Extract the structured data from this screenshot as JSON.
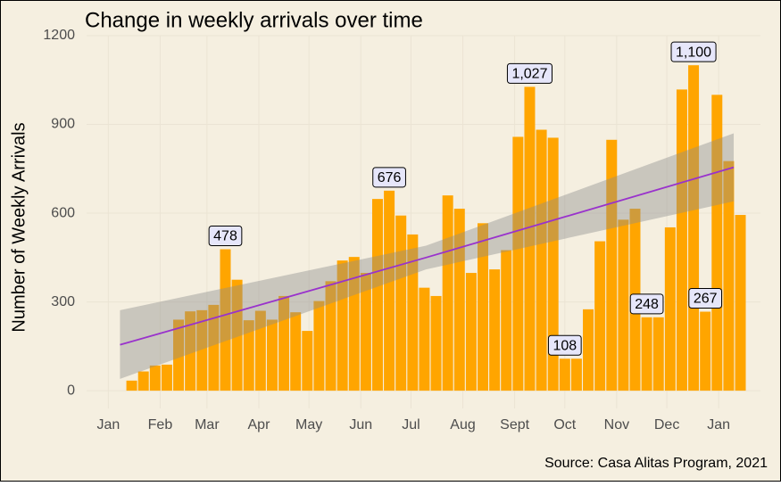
{
  "chart_data": {
    "type": "bar",
    "title": "Change in weekly arrivals over time",
    "y_label": "Number of Weekly Arrivals",
    "source": "Source: Casa Alitas Program, 2021",
    "color": "#ffa500",
    "x": [
      14,
      21,
      28,
      35,
      42,
      49,
      56,
      63,
      70,
      77,
      84,
      91,
      98,
      105,
      112,
      119,
      126,
      133,
      140,
      147,
      154,
      161,
      168,
      175,
      182,
      189,
      196,
      203,
      210,
      217,
      224,
      231,
      238,
      245,
      252,
      259,
      266,
      273,
      280,
      287,
      294,
      301,
      308,
      315,
      322,
      329,
      336,
      343,
      350,
      357,
      364,
      371,
      378
    ],
    "values": [
      34,
      65,
      85,
      88,
      240,
      268,
      272,
      290,
      478,
      375,
      238,
      270,
      240,
      320,
      265,
      202,
      303,
      370,
      440,
      452,
      398,
      648,
      676,
      592,
      528,
      348,
      320,
      660,
      615,
      398,
      566,
      410,
      475,
      858,
      1027,
      882,
      855,
      108,
      108,
      275,
      505,
      848,
      578,
      615,
      248,
      248,
      552,
      1018,
      1100,
      267,
      1000,
      776,
      594
    ],
    "value_labels": [
      null,
      null,
      null,
      null,
      null,
      null,
      null,
      null,
      "478",
      null,
      null,
      null,
      null,
      null,
      null,
      null,
      null,
      null,
      null,
      null,
      null,
      null,
      "676",
      null,
      null,
      null,
      null,
      null,
      null,
      null,
      null,
      null,
      null,
      null,
      "1,027",
      null,
      null,
      "108",
      null,
      null,
      null,
      null,
      null,
      null,
      "248",
      null,
      null,
      null,
      "1,100",
      "267",
      null,
      null,
      null
    ],
    "trend": {
      "color": "#9932cc",
      "x": [
        7,
        190,
        374
      ],
      "values": [
        155,
        450,
        755
      ],
      "lower": [
        40,
        410,
        640
      ],
      "upper": [
        272,
        490,
        870
      ]
    },
    "xlim": [
      -13,
      390
    ],
    "xticks": [
      {
        "value": 0,
        "label": "Jan"
      },
      {
        "value": 31,
        "label": "Feb"
      },
      {
        "value": 59,
        "label": "Mar"
      },
      {
        "value": 90,
        "label": "Apr"
      },
      {
        "value": 120,
        "label": "May"
      },
      {
        "value": 151,
        "label": "Jun"
      },
      {
        "value": 181,
        "label": "Jul"
      },
      {
        "value": 212,
        "label": "Aug"
      },
      {
        "value": 243,
        "label": "Sept"
      },
      {
        "value": 273,
        "label": "Oct"
      },
      {
        "value": 304,
        "label": "Nov"
      },
      {
        "value": 334,
        "label": "Dec"
      },
      {
        "value": 365,
        "label": "Jan"
      }
    ],
    "ylim": [
      -60,
      1200
    ],
    "yticks": [
      0,
      300,
      600,
      900,
      1200
    ],
    "grid": true
  }
}
